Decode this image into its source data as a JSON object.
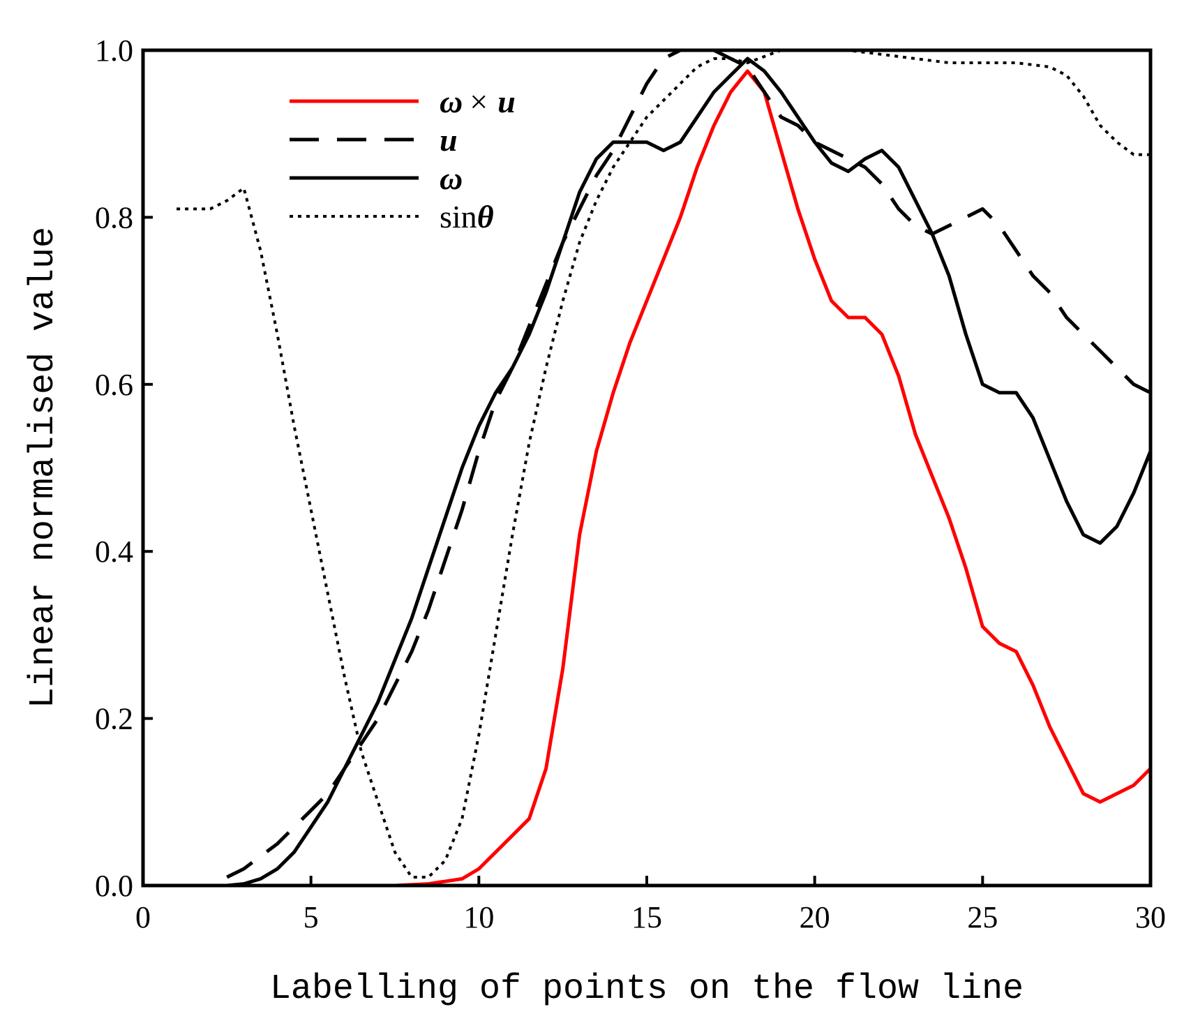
{
  "chart_data": {
    "type": "line",
    "title": "",
    "xlabel": "Labelling of points on the flow line",
    "ylabel": "Linear normalised value",
    "xlim": [
      0,
      30
    ],
    "ylim": [
      0,
      1.0
    ],
    "x_ticks": [
      "0",
      "5",
      "10",
      "15",
      "20",
      "25",
      "30"
    ],
    "y_ticks": [
      "0.0",
      "0.2",
      "0.4",
      "0.6",
      "0.8",
      "1.0"
    ],
    "grid": false,
    "legend_position": "top-left",
    "series": [
      {
        "name": "ω × u",
        "legend_symbol": "ω",
        "legend_mid": "×",
        "legend_var": "u",
        "color": "#ff0000",
        "style": "solid",
        "x": [
          7.5,
          8.5,
          9.5,
          10,
          11,
          11.5,
          12,
          12.5,
          13,
          13.5,
          14,
          14.5,
          15,
          15.5,
          16,
          16.5,
          17,
          17.5,
          18,
          18.5,
          19,
          19.5,
          20,
          20.5,
          21,
          21.5,
          22,
          22.5,
          23,
          23.5,
          24,
          24.5,
          25,
          25.5,
          26,
          26.5,
          27,
          27.5,
          28,
          28.5,
          29,
          29.5,
          30
        ],
        "y": [
          0.0,
          0.002,
          0.008,
          0.02,
          0.06,
          0.08,
          0.14,
          0.26,
          0.42,
          0.52,
          0.59,
          0.65,
          0.7,
          0.75,
          0.8,
          0.86,
          0.91,
          0.95,
          0.975,
          0.95,
          0.88,
          0.81,
          0.75,
          0.7,
          0.68,
          0.68,
          0.66,
          0.61,
          0.54,
          0.49,
          0.44,
          0.38,
          0.31,
          0.29,
          0.28,
          0.24,
          0.19,
          0.15,
          0.11,
          0.1,
          0.11,
          0.12,
          0.14
        ]
      },
      {
        "name": "u",
        "legend_symbol": "u",
        "color": "#000000",
        "style": "dashed",
        "x": [
          2.5,
          3,
          3.5,
          4,
          4.5,
          5,
          5.5,
          6,
          6.5,
          7,
          7.5,
          8,
          8.5,
          9,
          9.5,
          10,
          10.5,
          11,
          11.5,
          12,
          12.5,
          13,
          13.5,
          14,
          14.5,
          15,
          15.5,
          16,
          16.5,
          17,
          17.5,
          18,
          18.5,
          19,
          19.5,
          20,
          20.5,
          21,
          21.5,
          22,
          22.5,
          23,
          23.5,
          24,
          24.5,
          25,
          25.5,
          26,
          26.5,
          27,
          27.5,
          28,
          28.5,
          29,
          29.5,
          30
        ],
        "y": [
          0.01,
          0.02,
          0.035,
          0.05,
          0.07,
          0.09,
          0.11,
          0.14,
          0.17,
          0.2,
          0.24,
          0.28,
          0.33,
          0.39,
          0.45,
          0.52,
          0.58,
          0.62,
          0.67,
          0.72,
          0.77,
          0.81,
          0.85,
          0.88,
          0.92,
          0.96,
          0.99,
          1.0,
          1.0,
          1.0,
          0.99,
          0.98,
          0.95,
          0.92,
          0.91,
          0.89,
          0.88,
          0.87,
          0.86,
          0.84,
          0.81,
          0.79,
          0.78,
          0.79,
          0.8,
          0.81,
          0.79,
          0.76,
          0.73,
          0.71,
          0.68,
          0.66,
          0.64,
          0.62,
          0.6,
          0.59
        ]
      },
      {
        "name": "ω",
        "legend_symbol": "ω",
        "color": "#000000",
        "style": "solid",
        "x": [
          1.5,
          2.5,
          3,
          3.5,
          4,
          4.5,
          5,
          5.5,
          6,
          6.5,
          7,
          7.5,
          8,
          8.5,
          9,
          9.5,
          10,
          10.5,
          11,
          11.5,
          12,
          12.5,
          13,
          13.5,
          14,
          14.5,
          15,
          15.5,
          16,
          16.5,
          17,
          17.5,
          18,
          18.5,
          19,
          19.5,
          20,
          20.5,
          21,
          21.5,
          22,
          22.5,
          23,
          23.5,
          24,
          24.5,
          25,
          25.5,
          26,
          26.5,
          27,
          27.5,
          28,
          28.5,
          29,
          29.5,
          30
        ],
        "y": [
          0.0,
          0.0,
          0.002,
          0.008,
          0.02,
          0.04,
          0.07,
          0.1,
          0.14,
          0.18,
          0.22,
          0.27,
          0.32,
          0.38,
          0.44,
          0.5,
          0.55,
          0.59,
          0.62,
          0.66,
          0.71,
          0.77,
          0.83,
          0.87,
          0.89,
          0.89,
          0.89,
          0.88,
          0.89,
          0.92,
          0.95,
          0.97,
          0.99,
          0.975,
          0.95,
          0.92,
          0.89,
          0.865,
          0.855,
          0.87,
          0.88,
          0.86,
          0.82,
          0.78,
          0.73,
          0.66,
          0.6,
          0.59,
          0.59,
          0.56,
          0.51,
          0.46,
          0.42,
          0.41,
          0.43,
          0.47,
          0.52
        ]
      },
      {
        "name": "sinθ",
        "legend_symbol": "sin",
        "legend_var": "θ",
        "color": "#000000",
        "style": "dotted",
        "x": [
          1,
          1.5,
          2,
          2.5,
          3,
          3.5,
          4,
          4.5,
          5,
          5.5,
          6,
          6.5,
          7,
          7.5,
          8,
          8.5,
          9,
          9.5,
          10,
          10.5,
          11,
          11.5,
          12,
          12.5,
          13,
          13.5,
          14,
          14.5,
          15,
          15.5,
          16,
          16.5,
          17,
          17.5,
          18,
          19,
          20,
          21,
          22,
          23,
          24,
          25,
          26,
          27,
          27.5,
          28,
          28.5,
          29,
          29.5,
          30
        ],
        "y": [
          0.81,
          0.81,
          0.81,
          0.82,
          0.835,
          0.76,
          0.66,
          0.55,
          0.45,
          0.35,
          0.25,
          0.16,
          0.1,
          0.04,
          0.01,
          0.01,
          0.03,
          0.08,
          0.18,
          0.3,
          0.42,
          0.53,
          0.62,
          0.7,
          0.77,
          0.82,
          0.86,
          0.89,
          0.92,
          0.94,
          0.96,
          0.98,
          0.99,
          0.99,
          0.985,
          1.0,
          1.0,
          1.0,
          0.995,
          0.99,
          0.985,
          0.985,
          0.985,
          0.98,
          0.97,
          0.945,
          0.91,
          0.89,
          0.875,
          0.875
        ]
      }
    ]
  }
}
